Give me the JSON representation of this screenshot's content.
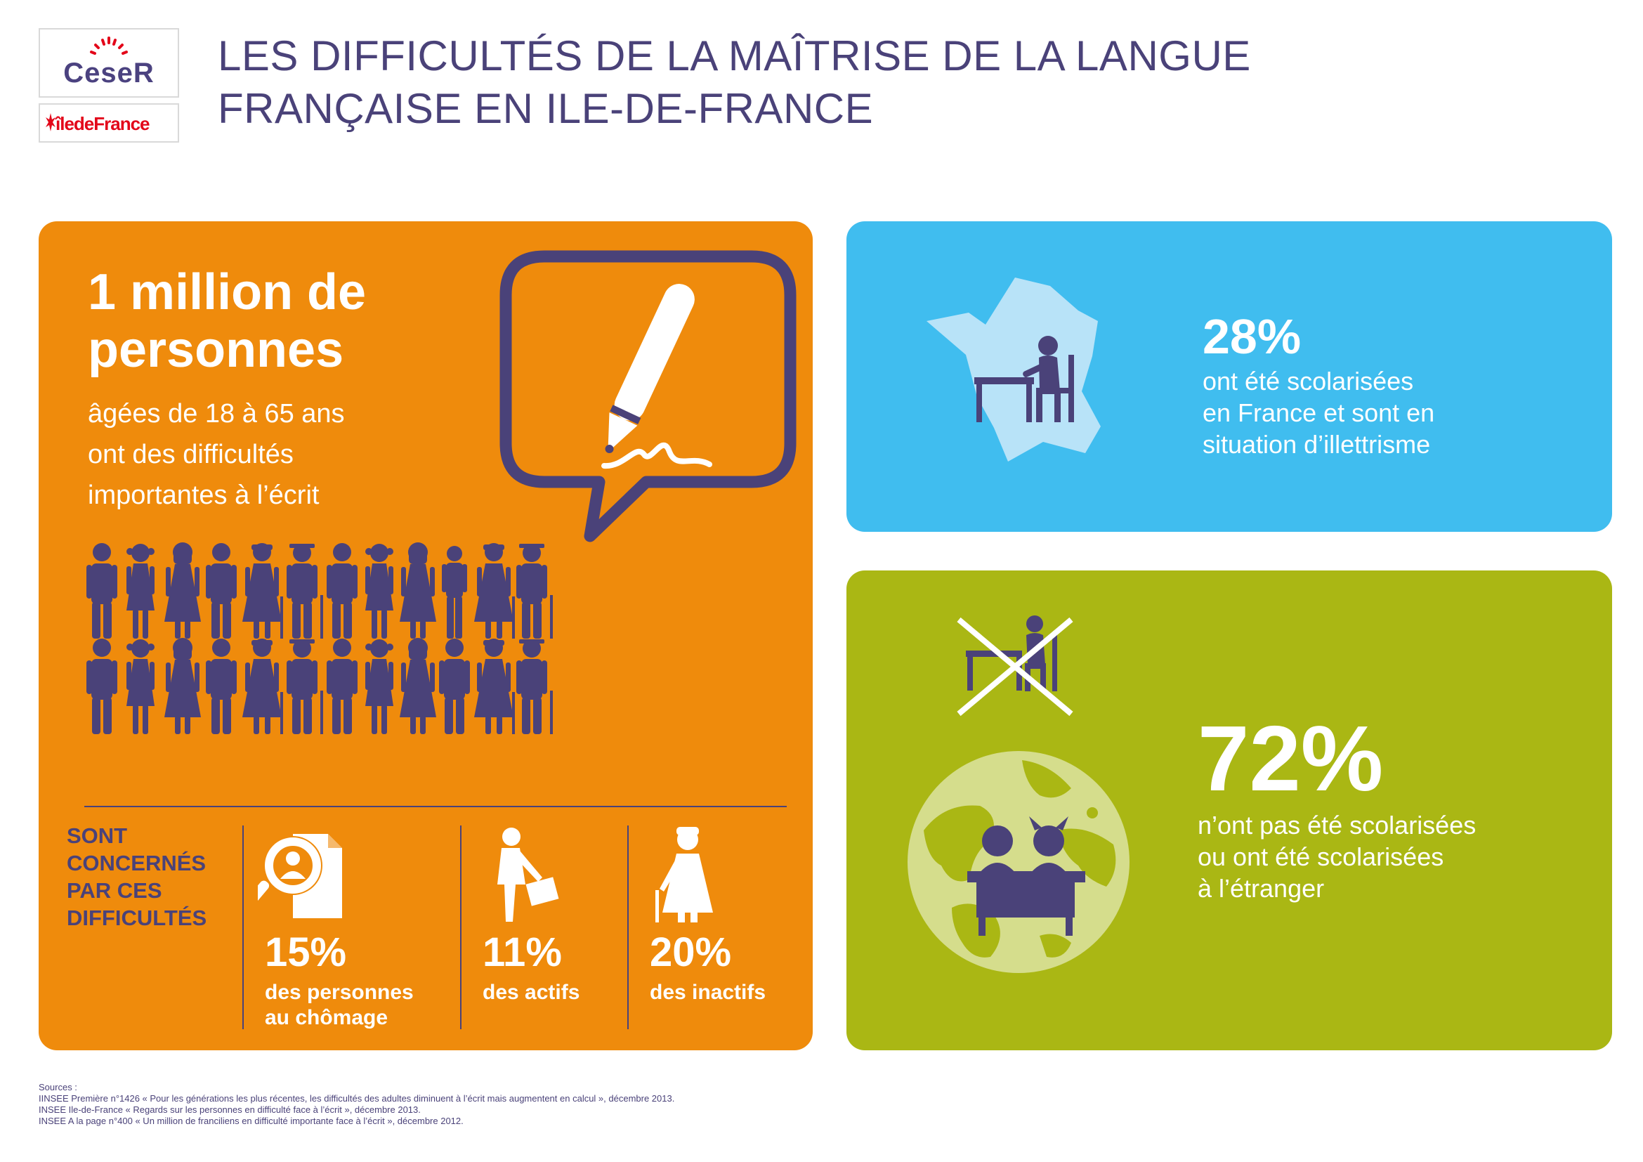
{
  "logos": {
    "ceser": "CeseR",
    "idf": "îledeFrance"
  },
  "title": {
    "line1": "LES DIFFICULTÉS DE LA MAÎTRISE DE LA LANGUE",
    "line2": "FRANÇAISE EN ILE-DE-FRANCE"
  },
  "main": {
    "headline_line1": "1 million de",
    "headline_line2": "personnes",
    "sub_line1": "âgées de 18 à 65 ans",
    "sub_line2": "ont des difficultés",
    "sub_line3": "importantes à l’écrit",
    "concerned_line1": "SONT",
    "concerned_line2": "CONCERNÉS",
    "concerned_line3": "PAR CES",
    "concerned_line4": "DIFFICULTÉS",
    "stats": [
      {
        "value": "15%",
        "label_line1": "des personnes",
        "label_line2": "au chômage",
        "icon": "magnifier-person-icon"
      },
      {
        "value": "11%",
        "label_line1": "des actifs",
        "label_line2": "",
        "icon": "worker-briefcase-icon"
      },
      {
        "value": "20%",
        "label_line1": "des inactifs",
        "label_line2": "",
        "icon": "elderly-woman-icon"
      }
    ]
  },
  "blue": {
    "value": "28%",
    "line1": "ont été scolarisées",
    "line2": "en France et sont en",
    "line3": "situation d’illettrisme"
  },
  "green": {
    "value": "72%",
    "line1": "n’ont pas été scolarisées",
    "line2": "ou ont été scolarisées",
    "line3": "à l’étranger"
  },
  "sources": {
    "heading": "Sources :",
    "line1": "IINSEE Première n°1426 « Pour les générations les plus récentes, les difficultés des adultes diminuent à l’écrit mais augmentent en calcul », décembre 2013.",
    "line2": "INSEE Ile-de-France « Regards sur les personnes en difficulté face à l’écrit », décembre 2013.",
    "line3": "INSEE A la page n°400 « Un million de franciliens en difficulté importante face à l’écrit », décembre 2012."
  },
  "colors": {
    "orange": "#ef8b0c",
    "blue": "#40bdef",
    "green": "#aab714",
    "purple": "#4a4279",
    "red": "#e3071a"
  }
}
